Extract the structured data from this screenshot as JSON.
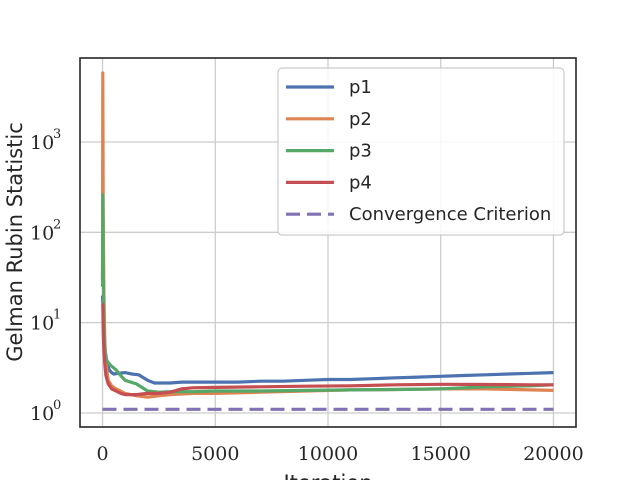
{
  "chart_data": {
    "type": "line",
    "title": "",
    "xlabel": "Iteration",
    "ylabel": "Gelman Rubin Statistic",
    "xlim": [
      -1000,
      21000
    ],
    "ylim": [
      0.7,
      8500
    ],
    "yscale": "log",
    "grid": true,
    "legend_position": "top-right",
    "x_ticks": [
      0,
      5000,
      10000,
      15000,
      20000
    ],
    "x_tick_labels": [
      "0",
      "5000",
      "10000",
      "15000",
      "20000"
    ],
    "y_ticks": [
      1,
      10,
      100,
      1000
    ],
    "y_tick_bases": [
      "10",
      "10",
      "10",
      "10"
    ],
    "y_tick_exponents": [
      "0",
      "1",
      "2",
      "3"
    ],
    "series": [
      {
        "name": "p1",
        "color": "#4c72b0",
        "x": [
          0,
          60,
          120,
          200,
          300,
          400,
          500,
          700,
          1000,
          1300,
          1600,
          2000,
          2300,
          2600,
          3000,
          3500,
          4000,
          5000,
          6000,
          7000,
          8000,
          9000,
          10000,
          11000,
          12000,
          13000,
          14000,
          15000,
          16000,
          17000,
          18000,
          19000,
          20000
        ],
        "y": [
          20,
          9,
          4.8,
          3.5,
          3.0,
          2.8,
          2.7,
          2.75,
          2.8,
          2.7,
          2.65,
          2.3,
          2.15,
          2.15,
          2.15,
          2.2,
          2.2,
          2.2,
          2.2,
          2.25,
          2.25,
          2.3,
          2.35,
          2.35,
          2.4,
          2.45,
          2.5,
          2.55,
          2.6,
          2.65,
          2.7,
          2.75,
          2.8
        ]
      },
      {
        "name": "p2",
        "color": "#dd8452",
        "x": [
          0,
          10,
          30,
          60,
          100,
          150,
          250,
          400,
          600,
          800,
          1000,
          1500,
          2000,
          2500,
          3000,
          4000,
          5000,
          7000,
          9000,
          11000,
          13000,
          15000,
          17000,
          19000,
          20000
        ],
        "y": [
          30,
          5800,
          200,
          20,
          6,
          3.5,
          2.3,
          2.0,
          1.85,
          1.75,
          1.65,
          1.55,
          1.5,
          1.55,
          1.6,
          1.65,
          1.65,
          1.7,
          1.75,
          1.8,
          1.82,
          1.85,
          1.85,
          1.8,
          1.78
        ]
      },
      {
        "name": "p3",
        "color": "#55a868",
        "x": [
          0,
          10,
          30,
          60,
          100,
          150,
          250,
          400,
          600,
          800,
          1000,
          1500,
          2000,
          2500,
          3000,
          4000,
          5000,
          7000,
          9000,
          11000,
          13000,
          15000,
          17000,
          19000,
          20000
        ],
        "y": [
          25,
          260,
          40,
          10,
          5,
          4.0,
          3.6,
          3.3,
          3.0,
          2.6,
          2.3,
          2.1,
          1.75,
          1.7,
          1.72,
          1.72,
          1.75,
          1.75,
          1.78,
          1.8,
          1.82,
          1.85,
          1.95,
          2.0,
          2.05
        ]
      },
      {
        "name": "p4",
        "color": "#c44e52",
        "x": [
          0,
          10,
          30,
          60,
          100,
          150,
          250,
          400,
          600,
          800,
          1000,
          1500,
          2000,
          2500,
          3000,
          3500,
          4000,
          5000,
          7000,
          9000,
          11000,
          13000,
          15000,
          17000,
          19000,
          20000
        ],
        "y": [
          16,
          16,
          8,
          5,
          3.5,
          2.6,
          2.1,
          1.85,
          1.75,
          1.65,
          1.6,
          1.6,
          1.65,
          1.65,
          1.7,
          1.85,
          1.9,
          1.92,
          1.95,
          1.98,
          2.0,
          2.05,
          2.08,
          2.07,
          2.05,
          2.05
        ]
      },
      {
        "name": "Convergence Criterion",
        "color": "#8172b3",
        "dashed": true,
        "x": [
          0,
          20000
        ],
        "y": [
          1.1,
          1.1
        ]
      }
    ]
  }
}
